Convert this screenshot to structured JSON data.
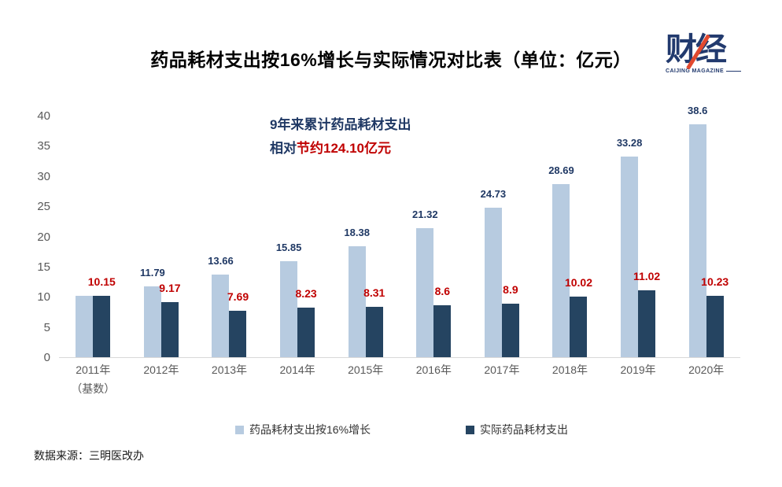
{
  "header": {
    "title": "药品耗材支出按16%增长与实际情况对比表（单位：亿元）",
    "logo": {
      "text": "财经",
      "subtext": "CAIJING MAGAZINE",
      "color": "#223A6E",
      "accent_color": "#E2492F"
    }
  },
  "annotation": {
    "line1": "9年来累计药品耗材支出",
    "line2_prefix": "相对",
    "line2_highlight": "节约124.10亿元",
    "text_color": "#1F3864",
    "highlight_color": "#C00000"
  },
  "chart_data": {
    "type": "bar",
    "title": "药品耗材支出按16%增长与实际情况对比表（单位：亿元）",
    "categories": [
      "2011年",
      "2012年",
      "2013年",
      "2014年",
      "2015年",
      "2016年",
      "2017年",
      "2018年",
      "2019年",
      "2020年"
    ],
    "base_note": "（基数）",
    "base_note_index": 0,
    "series": [
      {
        "name": "药品耗材支出按16%增长",
        "color": "#B7CBE0",
        "label_color": "#1F3864",
        "values": [
          10.15,
          11.79,
          13.66,
          15.85,
          18.38,
          21.32,
          24.73,
          28.69,
          33.28,
          38.6
        ],
        "labels": [
          "",
          "11.79",
          "13.66",
          "15.85",
          "18.38",
          "21.32",
          "24.73",
          "28.69",
          "33.28",
          "38.6"
        ]
      },
      {
        "name": "实际药品耗材支出",
        "color": "#254461",
        "label_color": "#C00000",
        "values": [
          10.15,
          9.17,
          7.69,
          8.23,
          8.31,
          8.6,
          8.9,
          10.02,
          11.02,
          10.23
        ],
        "labels": [
          "10.15",
          "9.17",
          "7.69",
          "8.23",
          "8.31",
          "8.6",
          "8.9",
          "10.02",
          "11.02",
          "10.23"
        ]
      }
    ],
    "xlabel": "",
    "ylabel": "",
    "ylim": [
      0,
      40
    ],
    "yticks": [
      0,
      5,
      10,
      15,
      20,
      25,
      30,
      35,
      40
    ],
    "grid": false,
    "legend_position": "bottom",
    "axis_line_color": "#D9D9D9",
    "tick_label_color": "#595959"
  },
  "footer": {
    "source": "数据来源：三明医改办"
  }
}
